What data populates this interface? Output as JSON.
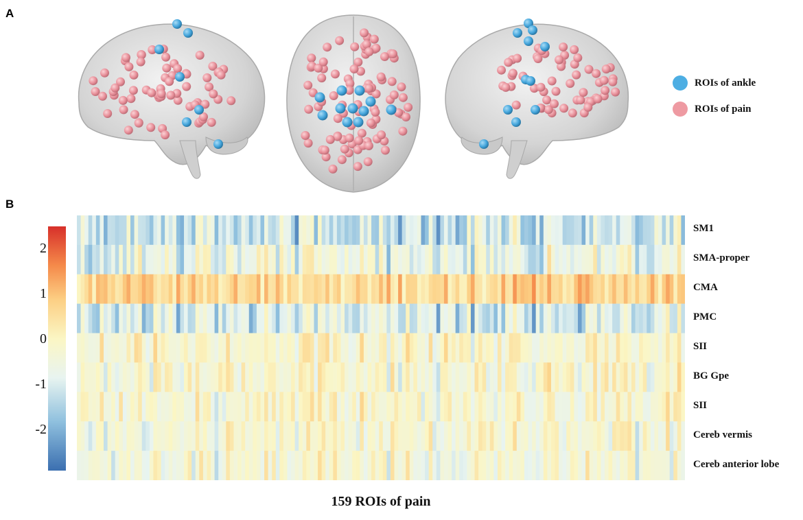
{
  "panels": {
    "a": "A",
    "b": "B"
  },
  "legend": [
    {
      "label": "ROIs of ankle",
      "color": "#4daee3"
    },
    {
      "label": "ROIs of pain",
      "color": "#ee9aa2"
    }
  ],
  "chart_data": {
    "type": "heatmap",
    "xlabel": "159 ROIs of pain",
    "rows": [
      "SM1",
      "SMA-proper",
      "CMA",
      "PMC",
      "SII",
      "BG Gpe",
      "SII",
      "Cereb vermis",
      "Cereb anterior lobe"
    ],
    "n_columns": 159,
    "colorbar": {
      "ticks": [
        2,
        1,
        0,
        -1,
        -2
      ],
      "range": [
        -2.9,
        2.5
      ],
      "colors": [
        "#3b6fb0",
        "#8fc0de",
        "#e8f4f0",
        "#fbf6c4",
        "#fccf84",
        "#f58a4a",
        "#d7302a"
      ]
    }
  }
}
